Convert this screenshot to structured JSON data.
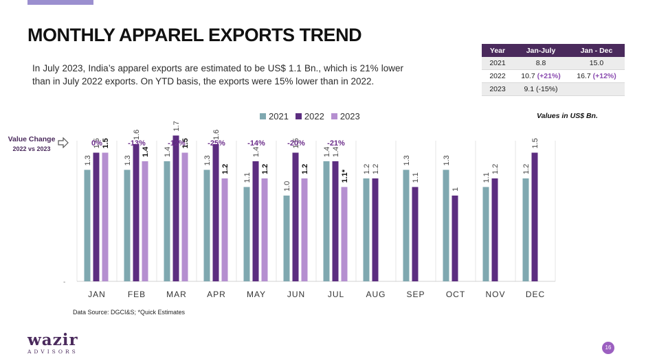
{
  "page": {
    "title": "MONTHLY APPAREL EXPORTS TREND",
    "intro": "In July 2023, India’s apparel exports are estimated to be US$ 1.1 Bn., which is 21% lower than in July 2022 exports. On YTD basis, the exports were 15% lower than in 2022.",
    "values_note": "Values in US$ Bn.",
    "value_change_label": "Value Change",
    "value_change_sub": "2022 vs 2023",
    "source": "Data Source: DGCI&S; *Quick Estimates",
    "logo_main": "wazir",
    "logo_sub": "ADVISORS",
    "page_number": "16"
  },
  "summary_table": {
    "headers": [
      "Year",
      "Jan-July",
      "Jan - Dec"
    ],
    "rows": [
      {
        "year": "2021",
        "janjuly": "8.8",
        "janjuly_pct": "",
        "jandec": "15.0",
        "jandec_pct": ""
      },
      {
        "year": "2022",
        "janjuly": "10.7",
        "janjuly_pct": "(+21%)",
        "jandec": "16.7",
        "jandec_pct": "(+12%)"
      },
      {
        "year": "2023",
        "janjuly": "9.1",
        "janjuly_pct": "(-15%)",
        "jandec": "",
        "jandec_pct": ""
      }
    ]
  },
  "colors": {
    "s2021": "#7fa8b0",
    "s2022": "#5c2d80",
    "s2023": "#b58fd0",
    "change": "#6b2d8a"
  },
  "chart_data": {
    "type": "bar",
    "categories": [
      "JAN",
      "FEB",
      "MAR",
      "APR",
      "MAY",
      "JUN",
      "JUL",
      "AUG",
      "SEP",
      "OCT",
      "NOV",
      "DEC"
    ],
    "series": [
      {
        "name": "2021",
        "values": [
          1.3,
          1.3,
          1.4,
          1.3,
          1.1,
          1.0,
          1.4,
          1.2,
          1.3,
          1.3,
          1.1,
          1.2
        ],
        "labels": [
          "1.3",
          "1.3",
          "1.4",
          "1.3",
          "1.1",
          "1.0",
          "1.4",
          "1.2",
          "1.3",
          "1.3",
          "1.1",
          "1.2"
        ]
      },
      {
        "name": "2022",
        "values": [
          1.5,
          1.6,
          1.7,
          1.6,
          1.4,
          1.5,
          1.4,
          1.2,
          1.1,
          1.0,
          1.2,
          1.5
        ],
        "labels": [
          "1.5",
          "1.6",
          "1.7",
          "1.6",
          "1.4",
          "1.5",
          "1.4",
          "1.2",
          "1.1",
          "1",
          "1.2",
          "1.5"
        ]
      },
      {
        "name": "2023",
        "values": [
          1.5,
          1.4,
          1.5,
          1.2,
          1.2,
          1.2,
          1.1,
          null,
          null,
          null,
          null,
          null
        ],
        "labels": [
          "1.5",
          "1.4",
          "1.5",
          "1.2",
          "1.2",
          "1.2",
          "1.1*",
          "",
          "",
          "",
          "",
          ""
        ]
      }
    ],
    "value_change": [
      "0%",
      "-13%",
      "-12%",
      "-25%",
      "-14%",
      "-20%",
      "-21%"
    ],
    "y_axis_tick": "-",
    "ylim": [
      0,
      2.0
    ],
    "grid": "vertical",
    "legend": "top-center"
  }
}
